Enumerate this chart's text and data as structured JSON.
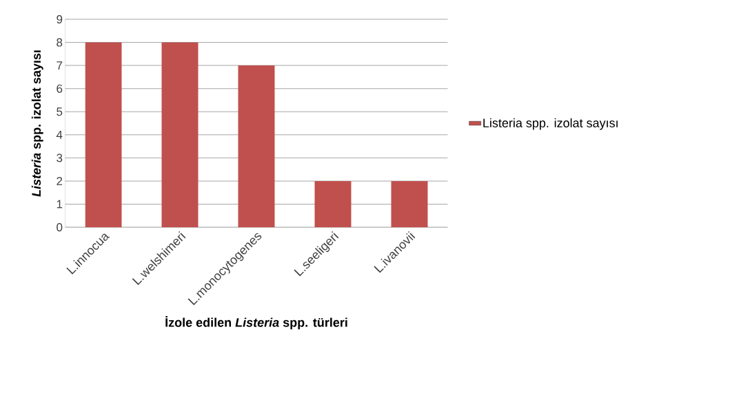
{
  "chart_data": {
    "type": "bar",
    "categories": [
      "L.innocua",
      "L.welshimeri",
      "L.monocytogenes",
      "L.seeligeri",
      "L.ivanovii"
    ],
    "series": [
      {
        "name": "Listeria spp. izolat sayısı",
        "color": "#c0504d",
        "values": [
          8,
          8,
          7,
          2,
          2
        ]
      }
    ],
    "xlabel": "İzole edilen *Listeria* spp. türleri",
    "ylabel": "*Listeria* spp. izolat sayısı",
    "ylim": [
      0,
      9
    ],
    "yticks": [
      0,
      1,
      2,
      3,
      4,
      5,
      6,
      7,
      8,
      9
    ],
    "grid": "y",
    "legend": "right"
  }
}
